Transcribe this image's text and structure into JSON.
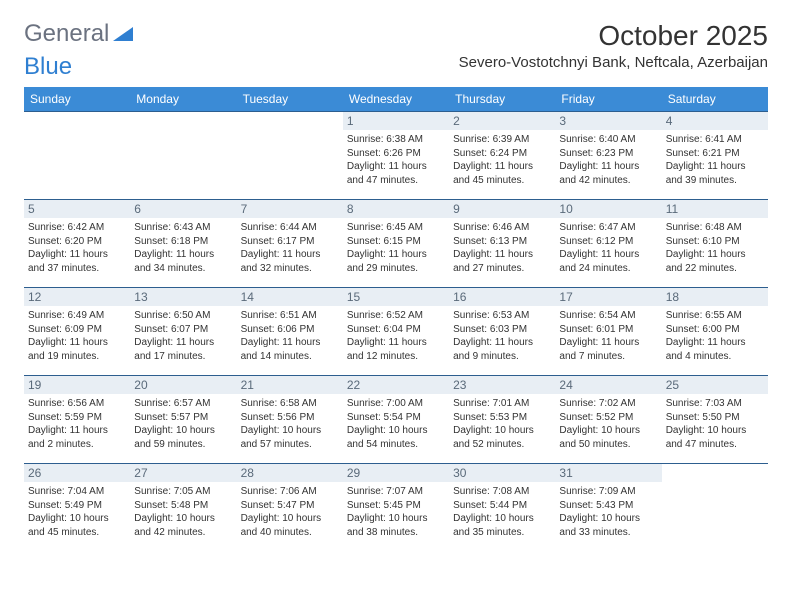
{
  "logo": {
    "text1": "General",
    "text2": "Blue"
  },
  "title": {
    "month": "October 2025",
    "location": "Severo-Vostotchnyi Bank, Neftcala, Azerbaijan"
  },
  "colors": {
    "header_bg": "#3b8bd6",
    "header_text": "#ffffff",
    "daynum_bg": "#e8eef4",
    "daynum_text": "#5a6a7a",
    "row_border": "#2d5e8f",
    "body_text": "#333333",
    "logo_gray": "#6b7280",
    "logo_blue": "#2f7fd1"
  },
  "columns": [
    "Sunday",
    "Monday",
    "Tuesday",
    "Wednesday",
    "Thursday",
    "Friday",
    "Saturday"
  ],
  "weeks": [
    [
      null,
      null,
      null,
      {
        "num": "1",
        "sr": "Sunrise: 6:38 AM",
        "ss": "Sunset: 6:26 PM",
        "dl1": "Daylight: 11 hours",
        "dl2": "and 47 minutes."
      },
      {
        "num": "2",
        "sr": "Sunrise: 6:39 AM",
        "ss": "Sunset: 6:24 PM",
        "dl1": "Daylight: 11 hours",
        "dl2": "and 45 minutes."
      },
      {
        "num": "3",
        "sr": "Sunrise: 6:40 AM",
        "ss": "Sunset: 6:23 PM",
        "dl1": "Daylight: 11 hours",
        "dl2": "and 42 minutes."
      },
      {
        "num": "4",
        "sr": "Sunrise: 6:41 AM",
        "ss": "Sunset: 6:21 PM",
        "dl1": "Daylight: 11 hours",
        "dl2": "and 39 minutes."
      }
    ],
    [
      {
        "num": "5",
        "sr": "Sunrise: 6:42 AM",
        "ss": "Sunset: 6:20 PM",
        "dl1": "Daylight: 11 hours",
        "dl2": "and 37 minutes."
      },
      {
        "num": "6",
        "sr": "Sunrise: 6:43 AM",
        "ss": "Sunset: 6:18 PM",
        "dl1": "Daylight: 11 hours",
        "dl2": "and 34 minutes."
      },
      {
        "num": "7",
        "sr": "Sunrise: 6:44 AM",
        "ss": "Sunset: 6:17 PM",
        "dl1": "Daylight: 11 hours",
        "dl2": "and 32 minutes."
      },
      {
        "num": "8",
        "sr": "Sunrise: 6:45 AM",
        "ss": "Sunset: 6:15 PM",
        "dl1": "Daylight: 11 hours",
        "dl2": "and 29 minutes."
      },
      {
        "num": "9",
        "sr": "Sunrise: 6:46 AM",
        "ss": "Sunset: 6:13 PM",
        "dl1": "Daylight: 11 hours",
        "dl2": "and 27 minutes."
      },
      {
        "num": "10",
        "sr": "Sunrise: 6:47 AM",
        "ss": "Sunset: 6:12 PM",
        "dl1": "Daylight: 11 hours",
        "dl2": "and 24 minutes."
      },
      {
        "num": "11",
        "sr": "Sunrise: 6:48 AM",
        "ss": "Sunset: 6:10 PM",
        "dl1": "Daylight: 11 hours",
        "dl2": "and 22 minutes."
      }
    ],
    [
      {
        "num": "12",
        "sr": "Sunrise: 6:49 AM",
        "ss": "Sunset: 6:09 PM",
        "dl1": "Daylight: 11 hours",
        "dl2": "and 19 minutes."
      },
      {
        "num": "13",
        "sr": "Sunrise: 6:50 AM",
        "ss": "Sunset: 6:07 PM",
        "dl1": "Daylight: 11 hours",
        "dl2": "and 17 minutes."
      },
      {
        "num": "14",
        "sr": "Sunrise: 6:51 AM",
        "ss": "Sunset: 6:06 PM",
        "dl1": "Daylight: 11 hours",
        "dl2": "and 14 minutes."
      },
      {
        "num": "15",
        "sr": "Sunrise: 6:52 AM",
        "ss": "Sunset: 6:04 PM",
        "dl1": "Daylight: 11 hours",
        "dl2": "and 12 minutes."
      },
      {
        "num": "16",
        "sr": "Sunrise: 6:53 AM",
        "ss": "Sunset: 6:03 PM",
        "dl1": "Daylight: 11 hours",
        "dl2": "and 9 minutes."
      },
      {
        "num": "17",
        "sr": "Sunrise: 6:54 AM",
        "ss": "Sunset: 6:01 PM",
        "dl1": "Daylight: 11 hours",
        "dl2": "and 7 minutes."
      },
      {
        "num": "18",
        "sr": "Sunrise: 6:55 AM",
        "ss": "Sunset: 6:00 PM",
        "dl1": "Daylight: 11 hours",
        "dl2": "and 4 minutes."
      }
    ],
    [
      {
        "num": "19",
        "sr": "Sunrise: 6:56 AM",
        "ss": "Sunset: 5:59 PM",
        "dl1": "Daylight: 11 hours",
        "dl2": "and 2 minutes."
      },
      {
        "num": "20",
        "sr": "Sunrise: 6:57 AM",
        "ss": "Sunset: 5:57 PM",
        "dl1": "Daylight: 10 hours",
        "dl2": "and 59 minutes."
      },
      {
        "num": "21",
        "sr": "Sunrise: 6:58 AM",
        "ss": "Sunset: 5:56 PM",
        "dl1": "Daylight: 10 hours",
        "dl2": "and 57 minutes."
      },
      {
        "num": "22",
        "sr": "Sunrise: 7:00 AM",
        "ss": "Sunset: 5:54 PM",
        "dl1": "Daylight: 10 hours",
        "dl2": "and 54 minutes."
      },
      {
        "num": "23",
        "sr": "Sunrise: 7:01 AM",
        "ss": "Sunset: 5:53 PM",
        "dl1": "Daylight: 10 hours",
        "dl2": "and 52 minutes."
      },
      {
        "num": "24",
        "sr": "Sunrise: 7:02 AM",
        "ss": "Sunset: 5:52 PM",
        "dl1": "Daylight: 10 hours",
        "dl2": "and 50 minutes."
      },
      {
        "num": "25",
        "sr": "Sunrise: 7:03 AM",
        "ss": "Sunset: 5:50 PM",
        "dl1": "Daylight: 10 hours",
        "dl2": "and 47 minutes."
      }
    ],
    [
      {
        "num": "26",
        "sr": "Sunrise: 7:04 AM",
        "ss": "Sunset: 5:49 PM",
        "dl1": "Daylight: 10 hours",
        "dl2": "and 45 minutes."
      },
      {
        "num": "27",
        "sr": "Sunrise: 7:05 AM",
        "ss": "Sunset: 5:48 PM",
        "dl1": "Daylight: 10 hours",
        "dl2": "and 42 minutes."
      },
      {
        "num": "28",
        "sr": "Sunrise: 7:06 AM",
        "ss": "Sunset: 5:47 PM",
        "dl1": "Daylight: 10 hours",
        "dl2": "and 40 minutes."
      },
      {
        "num": "29",
        "sr": "Sunrise: 7:07 AM",
        "ss": "Sunset: 5:45 PM",
        "dl1": "Daylight: 10 hours",
        "dl2": "and 38 minutes."
      },
      {
        "num": "30",
        "sr": "Sunrise: 7:08 AM",
        "ss": "Sunset: 5:44 PM",
        "dl1": "Daylight: 10 hours",
        "dl2": "and 35 minutes."
      },
      {
        "num": "31",
        "sr": "Sunrise: 7:09 AM",
        "ss": "Sunset: 5:43 PM",
        "dl1": "Daylight: 10 hours",
        "dl2": "and 33 minutes."
      },
      null
    ]
  ]
}
